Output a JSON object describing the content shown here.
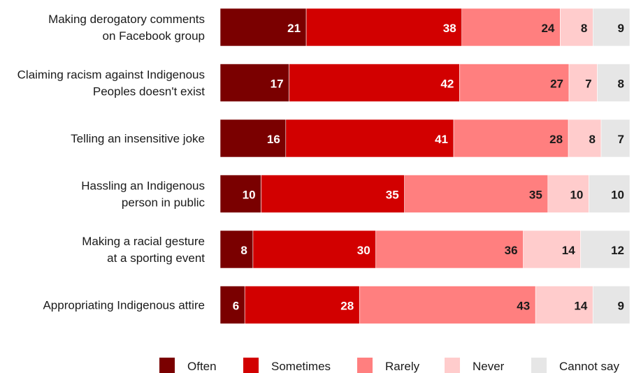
{
  "chart_data": {
    "type": "bar",
    "orientation": "horizontal",
    "stacked": true,
    "categories": [
      [
        "Making derogatory comments",
        "on Facebook group"
      ],
      [
        "Claiming racism against Indigenous",
        "Peoples doesn't exist"
      ],
      [
        "Telling an insensitive joke"
      ],
      [
        "Hassling an Indigenous",
        "person in public"
      ],
      [
        "Making a racial gesture",
        "at a sporting event"
      ],
      [
        "Appropriating Indigenous attire"
      ]
    ],
    "series": [
      {
        "name": "Often",
        "color": "#7a0000",
        "label_color": "#ffffff",
        "values": [
          21,
          17,
          16,
          10,
          8,
          6
        ]
      },
      {
        "name": "Sometimes",
        "color": "#d20000",
        "label_color": "#ffffff",
        "values": [
          38,
          42,
          41,
          35,
          30,
          28
        ]
      },
      {
        "name": "Rarely",
        "color": "#ff7f7f",
        "label_color": "#1a1a1a",
        "values": [
          24,
          27,
          28,
          35,
          36,
          43
        ]
      },
      {
        "name": "Never",
        "color": "#ffcccc",
        "label_color": "#1a1a1a",
        "values": [
          8,
          7,
          8,
          10,
          14,
          14
        ]
      },
      {
        "name": "Cannot say",
        "color": "#e6e6e6",
        "label_color": "#1a1a1a",
        "values": [
          9,
          8,
          7,
          10,
          12,
          9
        ]
      }
    ],
    "xlim": [
      0,
      100
    ],
    "legend_position": "bottom-right",
    "grid": false
  }
}
